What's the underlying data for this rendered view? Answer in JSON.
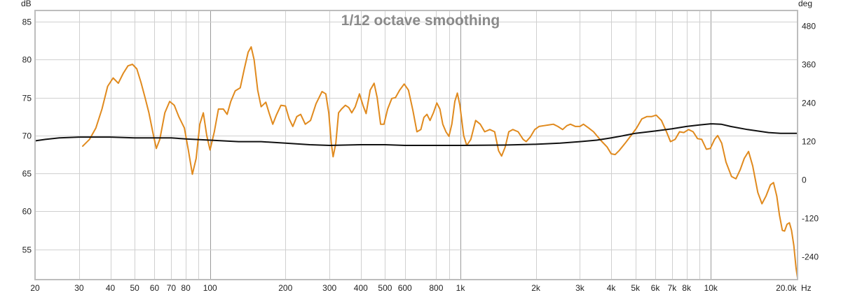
{
  "chart_data": {
    "type": "line",
    "title": "1/12 octave smoothing",
    "xscale": "log",
    "xlim": [
      20,
      20000
    ],
    "ylim": [
      51,
      86.5
    ],
    "y2lim": [
      -312,
      528
    ],
    "ylabel": "dB",
    "y2label": "deg",
    "xunit": "Hz",
    "grid": true,
    "x_ticks": [
      20,
      30,
      40,
      50,
      60,
      70,
      80,
      100,
      200,
      300,
      400,
      500,
      600,
      800,
      1000,
      2000,
      3000,
      4000,
      5000,
      6000,
      7000,
      8000,
      10000,
      20000
    ],
    "x_tick_labels": [
      "20",
      "30",
      "40",
      "50",
      "60",
      "70",
      "80",
      "100",
      "200",
      "300",
      "400",
      "500",
      "600",
      "800",
      "1k",
      "2k",
      "3k",
      "4k",
      "5k",
      "6k",
      "7k",
      "8k",
      "10k",
      "20.0k"
    ],
    "x_minor_grid": [
      90,
      900,
      9000
    ],
    "x_major_grid": [
      100,
      1000,
      10000
    ],
    "y_ticks": [
      55,
      60,
      65,
      70,
      75,
      80,
      85
    ],
    "y2_ticks": [
      -240,
      -120,
      0,
      120,
      240,
      360,
      480
    ],
    "series": [
      {
        "color": "#e08a1e",
        "axis": "left",
        "points": [
          [
            31,
            68.6
          ],
          [
            33,
            69.5
          ],
          [
            35,
            71
          ],
          [
            37,
            73.5
          ],
          [
            39,
            76.5
          ],
          [
            41,
            77.6
          ],
          [
            43,
            76.9
          ],
          [
            45,
            78.2
          ],
          [
            47,
            79.2
          ],
          [
            49,
            79.4
          ],
          [
            51,
            78.8
          ],
          [
            53,
            77
          ],
          [
            55,
            75
          ],
          [
            57,
            73
          ],
          [
            59,
            70.5
          ],
          [
            61,
            68.3
          ],
          [
            63,
            69.5
          ],
          [
            66,
            73
          ],
          [
            69,
            74.5
          ],
          [
            72,
            74
          ],
          [
            75,
            72.5
          ],
          [
            79,
            71
          ],
          [
            82,
            68
          ],
          [
            85,
            64.9
          ],
          [
            88,
            67
          ],
          [
            91,
            71.5
          ],
          [
            94,
            73
          ],
          [
            97,
            70
          ],
          [
            100,
            68.1
          ],
          [
            104,
            70.5
          ],
          [
            108,
            73.5
          ],
          [
            113,
            73.5
          ],
          [
            117,
            72.8
          ],
          [
            121,
            74.5
          ],
          [
            126,
            75.9
          ],
          [
            132,
            76.3
          ],
          [
            137,
            78.8
          ],
          [
            142,
            81
          ],
          [
            146,
            81.7
          ],
          [
            150,
            80
          ],
          [
            155,
            76
          ],
          [
            160,
            73.8
          ],
          [
            167,
            74.4
          ],
          [
            172,
            73
          ],
          [
            178,
            71.5
          ],
          [
            184,
            72.7
          ],
          [
            192,
            74
          ],
          [
            200,
            73.9
          ],
          [
            207,
            72.2
          ],
          [
            214,
            71.2
          ],
          [
            222,
            72.5
          ],
          [
            230,
            72.8
          ],
          [
            240,
            71.5
          ],
          [
            252,
            72
          ],
          [
            265,
            74.2
          ],
          [
            280,
            75.8
          ],
          [
            290,
            75.5
          ],
          [
            298,
            73
          ],
          [
            305,
            69
          ],
          [
            310,
            67.2
          ],
          [
            318,
            69
          ],
          [
            326,
            73
          ],
          [
            335,
            73.5
          ],
          [
            347,
            74
          ],
          [
            358,
            73.7
          ],
          [
            368,
            73
          ],
          [
            380,
            73.8
          ],
          [
            395,
            75.5
          ],
          [
            408,
            74
          ],
          [
            420,
            72.9
          ],
          [
            436,
            76
          ],
          [
            452,
            76.9
          ],
          [
            465,
            75
          ],
          [
            480,
            71.5
          ],
          [
            495,
            71.5
          ],
          [
            512,
            73.5
          ],
          [
            532,
            74.9
          ],
          [
            550,
            75
          ],
          [
            572,
            76
          ],
          [
            596,
            76.8
          ],
          [
            620,
            76
          ],
          [
            646,
            73.3
          ],
          [
            670,
            70.5
          ],
          [
            695,
            70.8
          ],
          [
            715,
            72.4
          ],
          [
            735,
            72.8
          ],
          [
            756,
            72
          ],
          [
            780,
            73
          ],
          [
            805,
            74.3
          ],
          [
            828,
            73.5
          ],
          [
            850,
            71.5
          ],
          [
            875,
            70.5
          ],
          [
            900,
            69.9
          ],
          [
            924,
            71.5
          ],
          [
            950,
            74.5
          ],
          [
            972,
            75.6
          ],
          [
            995,
            74
          ],
          [
            1030,
            70
          ],
          [
            1060,
            68.7
          ],
          [
            1100,
            69.5
          ],
          [
            1150,
            72
          ],
          [
            1200,
            71.5
          ],
          [
            1250,
            70.5
          ],
          [
            1310,
            70.8
          ],
          [
            1370,
            70.5
          ],
          [
            1420,
            68
          ],
          [
            1460,
            67.3
          ],
          [
            1510,
            68.5
          ],
          [
            1560,
            70.5
          ],
          [
            1620,
            70.8
          ],
          [
            1700,
            70.5
          ],
          [
            1780,
            69.5
          ],
          [
            1830,
            69.2
          ],
          [
            1900,
            69.8
          ],
          [
            1980,
            70.8
          ],
          [
            2060,
            71.2
          ],
          [
            2150,
            71.3
          ],
          [
            2250,
            71.4
          ],
          [
            2350,
            71.5
          ],
          [
            2450,
            71.2
          ],
          [
            2560,
            70.8
          ],
          [
            2660,
            71.3
          ],
          [
            2750,
            71.5
          ],
          [
            2880,
            71.2
          ],
          [
            3000,
            71.2
          ],
          [
            3100,
            71.5
          ],
          [
            3250,
            71
          ],
          [
            3400,
            70.5
          ],
          [
            3500,
            70
          ],
          [
            3650,
            69.3
          ],
          [
            3850,
            68.5
          ],
          [
            4000,
            67.6
          ],
          [
            4150,
            67.5
          ],
          [
            4300,
            68
          ],
          [
            4550,
            69
          ],
          [
            4800,
            70
          ],
          [
            5050,
            71
          ],
          [
            5300,
            72.2
          ],
          [
            5550,
            72.5
          ],
          [
            5800,
            72.5
          ],
          [
            6050,
            72.7
          ],
          [
            6350,
            72
          ],
          [
            6650,
            70.5
          ],
          [
            6900,
            69.2
          ],
          [
            7200,
            69.5
          ],
          [
            7500,
            70.5
          ],
          [
            7800,
            70.4
          ],
          [
            8150,
            70.8
          ],
          [
            8500,
            70.5
          ],
          [
            8850,
            69.6
          ],
          [
            9200,
            69.5
          ],
          [
            9600,
            68.2
          ],
          [
            9950,
            68.3
          ],
          [
            10350,
            69.5
          ],
          [
            10650,
            70
          ],
          [
            11050,
            69
          ],
          [
            11500,
            66.5
          ],
          [
            12100,
            64.6
          ],
          [
            12600,
            64.3
          ],
          [
            13100,
            65.5
          ],
          [
            13600,
            67
          ],
          [
            14150,
            67.9
          ],
          [
            14700,
            66
          ],
          [
            15400,
            62.5
          ],
          [
            16000,
            61
          ],
          [
            16600,
            62
          ],
          [
            17300,
            63.5
          ],
          [
            17800,
            63.8
          ],
          [
            18350,
            62
          ],
          [
            18800,
            59.5
          ],
          [
            19300,
            57.5
          ],
          [
            19700,
            57.4
          ],
          [
            20150,
            58.3
          ],
          [
            20600,
            58.5
          ],
          [
            21000,
            57.5
          ],
          [
            21450,
            55.5
          ],
          [
            21900,
            52.5
          ],
          [
            22200,
            51.2
          ]
        ]
      },
      {
        "color": "#111111",
        "axis": "left",
        "points": [
          [
            20,
            69.3
          ],
          [
            22,
            69.5
          ],
          [
            25,
            69.7
          ],
          [
            30,
            69.8
          ],
          [
            40,
            69.8
          ],
          [
            50,
            69.7
          ],
          [
            60,
            69.7
          ],
          [
            70,
            69.7
          ],
          [
            80,
            69.55
          ],
          [
            100,
            69.4
          ],
          [
            130,
            69.2
          ],
          [
            160,
            69.2
          ],
          [
            200,
            69.0
          ],
          [
            250,
            68.8
          ],
          [
            300,
            68.7
          ],
          [
            400,
            68.8
          ],
          [
            500,
            68.8
          ],
          [
            600,
            68.7
          ],
          [
            700,
            68.7
          ],
          [
            900,
            68.7
          ],
          [
            1000,
            68.7
          ],
          [
            1500,
            68.75
          ],
          [
            2000,
            68.85
          ],
          [
            2500,
            69.0
          ],
          [
            3000,
            69.2
          ],
          [
            3500,
            69.4
          ],
          [
            4000,
            69.7
          ],
          [
            4500,
            70.0
          ],
          [
            5000,
            70.3
          ],
          [
            6000,
            70.6
          ],
          [
            7000,
            70.9
          ],
          [
            8000,
            71.2
          ],
          [
            9000,
            71.4
          ],
          [
            10000,
            71.55
          ],
          [
            11000,
            71.5
          ],
          [
            12000,
            71.2
          ],
          [
            14000,
            70.8
          ],
          [
            17000,
            70.4
          ],
          [
            19000,
            70.3
          ],
          [
            22200,
            70.3
          ]
        ]
      }
    ]
  }
}
